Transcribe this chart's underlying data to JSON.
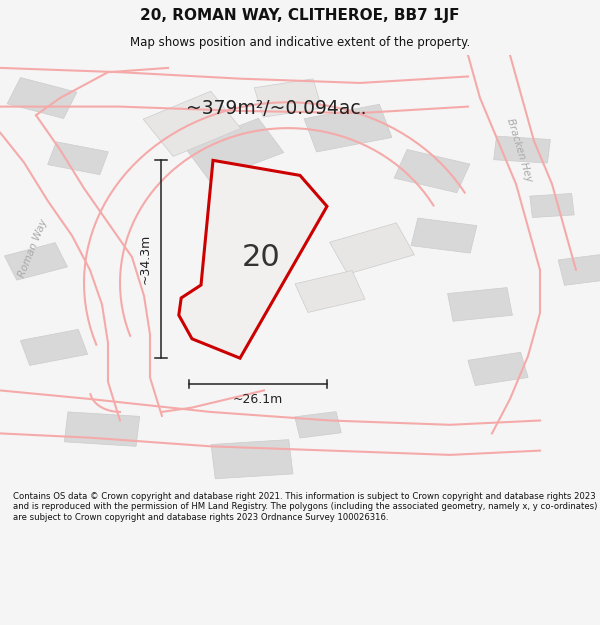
{
  "title": "20, ROMAN WAY, CLITHEROE, BB7 1JF",
  "subtitle": "Map shows position and indicative extent of the property.",
  "area_text": "~379m²/~0.094ac.",
  "property_number": "20",
  "dim_width": "~26.1m",
  "dim_height": "~34.3m",
  "road_label_roman": "Roman Way",
  "road_label_bracken": "Bracken Hey",
  "footnote": "Contains OS data © Crown copyright and database right 2021. This information is subject to Crown copyright and database rights 2023 and is reproduced with the permission of HM Land Registry. The polygons (including the associated geometry, namely x, y co-ordinates) are subject to Crown copyright and database rights 2023 Ordnance Survey 100026316.",
  "map_bg": "#ffffff",
  "building_fill": "#d8d8d8",
  "building_edge": "#cccccc",
  "road_color": "#f5aaaa",
  "road_lw": 1.5,
  "property_stroke": "#cc0000",
  "property_fill": "#f2f0ee",
  "dim_color": "#222222",
  "title_color": "#111111",
  "footnote_color": "#111111",
  "footnote_bg": "#f5f5f5"
}
